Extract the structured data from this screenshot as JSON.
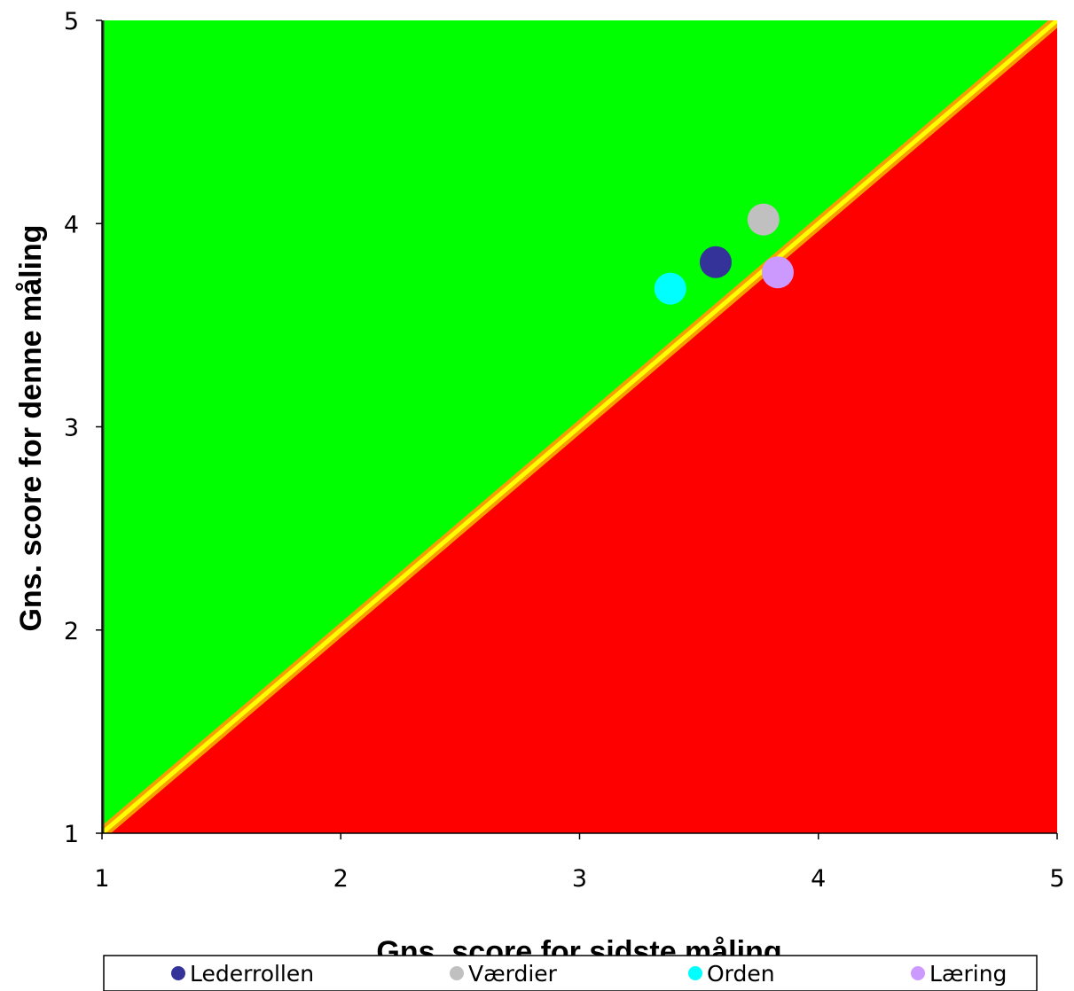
{
  "chart_data": {
    "type": "scatter",
    "xlabel": "Gns. score for sidste måling",
    "ylabel": "Gns. score for denne måling",
    "xlim": [
      1,
      5
    ],
    "ylim": [
      1,
      5
    ],
    "x_ticks": [
      "1",
      "2",
      "3",
      "4",
      "5"
    ],
    "y_ticks": [
      "1",
      "2",
      "3",
      "4",
      "5"
    ],
    "grid": false,
    "legend_position": "bottom",
    "regions": {
      "above_diagonal_color": "#00ff00",
      "below_diagonal_color": "#ff0000",
      "diagonal_color": "#ffff00"
    },
    "series": [
      {
        "name": "Lederrollen",
        "color": "#333399",
        "x": 3.57,
        "y": 3.81
      },
      {
        "name": "Værdier",
        "color": "#c0c0c0",
        "x": 3.77,
        "y": 4.02
      },
      {
        "name": "Orden",
        "color": "#00ffff",
        "x": 3.38,
        "y": 3.68
      },
      {
        "name": "Læring",
        "color": "#cc99ff",
        "x": 3.83,
        "y": 3.76
      }
    ]
  }
}
